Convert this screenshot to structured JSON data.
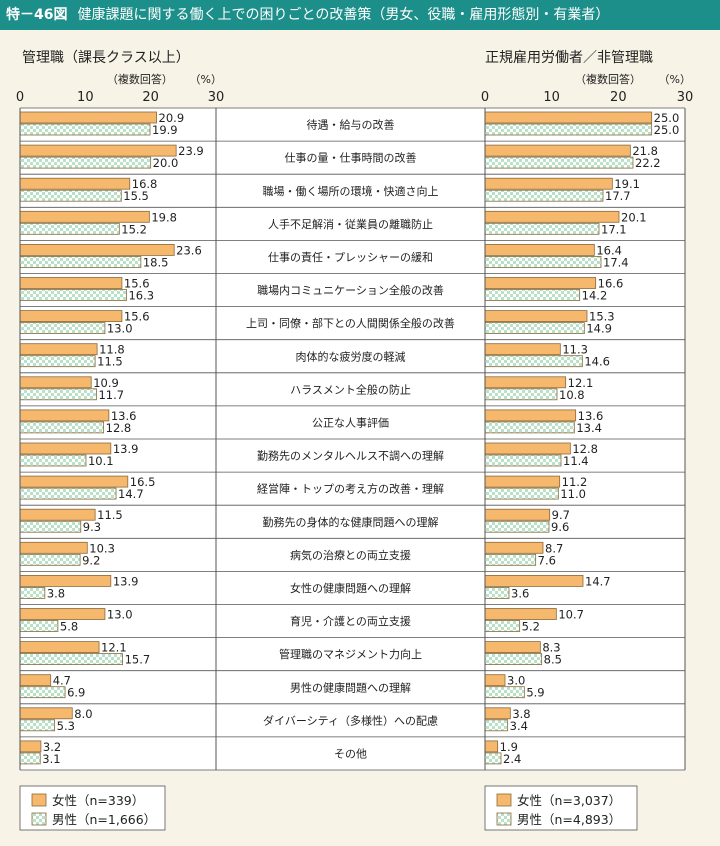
{
  "header": {
    "figure_label": "特－46図",
    "title": "健康課題に関する働く上での困りごとの改善策（男女、役職・雇用形態別・有業者）"
  },
  "colors": {
    "header_bg": "#1d8f8a",
    "female": "#f6b86c",
    "male_pattern_a": "#b9e1c8",
    "male_pattern_b": "#ffffff",
    "bar_stroke": "#8a6a3b"
  },
  "chart_data": [
    {
      "type": "bar",
      "orientation": "horizontal",
      "title": "管理職（課長クラス以上）",
      "note": "（複数回答）",
      "unit": "（%）",
      "xlim": [
        0,
        30
      ],
      "ticks": [
        0,
        10,
        20,
        30
      ],
      "legend_position": "bottom-left",
      "categories": [
        "待遇・給与の改善",
        "仕事の量・仕事時間の改善",
        "職場・働く場所の環境・快適さ向上",
        "人手不足解消・従業員の離職防止",
        "仕事の責任・プレッシャーの緩和",
        "職場内コミュニケーション全般の改善",
        "上司・同僚・部下との人間関係全般の改善",
        "肉体的な疲労度の軽減",
        "ハラスメント全般の防止",
        "公正な人事評価",
        "勤務先のメンタルヘルス不調への理解",
        "経営陣・トップの考え方の改善・理解",
        "勤務先の身体的な健康問題への理解",
        "病気の治療との両立支援",
        "女性の健康問題への理解",
        "育児・介護との両立支援",
        "管理職のマネジメント力向上",
        "男性の健康問題への理解",
        "ダイバーシティ（多様性）への配慮",
        "その他"
      ],
      "series": [
        {
          "name": "女性（n=339）",
          "values": [
            20.9,
            23.9,
            16.8,
            19.8,
            23.6,
            15.6,
            15.6,
            11.8,
            10.9,
            13.6,
            13.9,
            16.5,
            11.5,
            10.3,
            13.9,
            13.0,
            12.1,
            4.7,
            8.0,
            3.2
          ]
        },
        {
          "name": "男性（n=1,666）",
          "values": [
            19.9,
            20.0,
            15.5,
            15.2,
            18.5,
            16.3,
            13.0,
            11.5,
            11.7,
            12.8,
            10.1,
            14.7,
            9.3,
            9.2,
            3.8,
            5.8,
            15.7,
            6.9,
            5.3,
            3.1
          ]
        }
      ]
    },
    {
      "type": "bar",
      "orientation": "horizontal",
      "title": "正規雇用労働者／非管理職",
      "note": "（複数回答）",
      "unit": "（%）",
      "xlim": [
        0,
        30
      ],
      "ticks": [
        0,
        10,
        20,
        30
      ],
      "legend_position": "bottom-right",
      "series": [
        {
          "name": "女性（n=3,037）",
          "values": [
            25.0,
            21.8,
            19.1,
            20.1,
            16.4,
            16.6,
            15.3,
            11.3,
            12.1,
            13.6,
            12.8,
            11.2,
            9.7,
            8.7,
            14.7,
            10.7,
            8.3,
            3.0,
            3.8,
            1.9
          ]
        },
        {
          "name": "男性（n=4,893）",
          "values": [
            25.0,
            22.2,
            17.7,
            17.1,
            17.4,
            14.2,
            14.9,
            14.6,
            10.8,
            13.4,
            11.4,
            11.0,
            9.6,
            7.6,
            3.6,
            5.2,
            8.5,
            5.9,
            3.4,
            2.4
          ]
        }
      ]
    }
  ]
}
